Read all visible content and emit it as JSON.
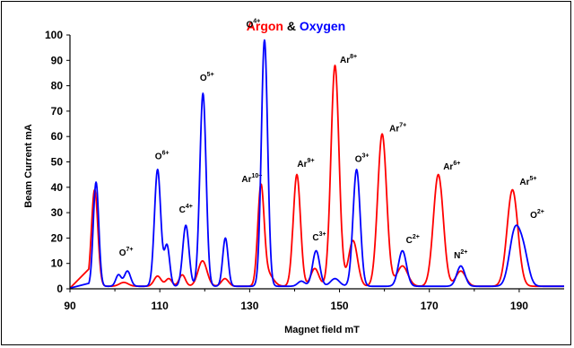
{
  "chart_data": {
    "type": "line",
    "title_parts": [
      {
        "text": "Argon",
        "color": "#ff0000"
      },
      {
        "text": " & ",
        "color": "#000000"
      },
      {
        "text": "Oxygen",
        "color": "#0000ff"
      }
    ],
    "xlabel": "Magnet field mT",
    "ylabel": "Beam Current mA",
    "xlim": [
      90,
      200
    ],
    "ylim": [
      0,
      100
    ],
    "xticks": [
      90,
      110,
      130,
      150,
      170,
      190
    ],
    "yticks": [
      0,
      10,
      20,
      30,
      40,
      50,
      60,
      70,
      80,
      90,
      100
    ],
    "grid": false,
    "series": [
      {
        "color": "#ff0000",
        "baseline": 1,
        "peaks": [
          [
            95.5,
            38,
            0.7
          ],
          [
            102,
            1.5,
            1.0
          ],
          [
            109.5,
            4,
            0.8
          ],
          [
            112,
            3,
            0.7
          ],
          [
            115,
            4.5,
            0.7
          ],
          [
            119.5,
            10,
            1.0
          ],
          [
            124.5,
            3,
            0.8
          ],
          [
            132.5,
            38,
            0.7
          ],
          [
            134,
            5,
            1.2
          ],
          [
            140.5,
            44,
            0.8
          ],
          [
            144.5,
            7,
            0.9
          ],
          [
            149,
            87,
            0.9
          ],
          [
            153,
            18,
            1.0
          ],
          [
            159.5,
            60,
            1.0
          ],
          [
            164,
            8,
            1.2
          ],
          [
            172,
            44,
            1.1
          ],
          [
            177,
            6,
            1.1
          ],
          [
            188.5,
            38,
            1.2
          ]
        ]
      },
      {
        "color": "#0000ff",
        "baseline": 1,
        "peaks": [
          [
            95.8,
            41,
            0.6
          ],
          [
            100.8,
            4.5,
            0.6
          ],
          [
            102.8,
            6,
            0.7
          ],
          [
            109.5,
            46,
            0.7
          ],
          [
            111.6,
            16,
            0.6
          ],
          [
            115.8,
            24,
            0.7
          ],
          [
            119.6,
            76,
            0.7
          ],
          [
            124.6,
            19,
            0.6
          ],
          [
            133.3,
            97,
            0.7
          ],
          [
            141.5,
            2,
            0.8
          ],
          [
            144.8,
            14,
            0.8
          ],
          [
            149,
            3,
            1.0
          ],
          [
            153.8,
            46,
            0.8
          ],
          [
            164,
            14,
            0.9
          ],
          [
            177,
            8,
            0.9
          ],
          [
            189,
            21,
            1.2
          ],
          [
            191,
            12,
            1.1
          ]
        ]
      }
    ],
    "annotations": [
      {
        "base": "O",
        "sup": "7+",
        "x": 102.5,
        "y": 13
      },
      {
        "base": "O",
        "sup": "6+",
        "x": 110.5,
        "y": 51
      },
      {
        "base": "C",
        "sup": "4+",
        "x": 115.8,
        "y": 30
      },
      {
        "base": "O",
        "sup": "5+",
        "x": 120.5,
        "y": 82
      },
      {
        "base": "O",
        "sup": "4+",
        "x": 130.8,
        "y": 103
      },
      {
        "base": "Ar",
        "sup": "10+",
        "x": 130.5,
        "y": 42
      },
      {
        "base": "Ar",
        "sup": "9+",
        "x": 142.5,
        "y": 48
      },
      {
        "base": "C",
        "sup": "3+",
        "x": 145.5,
        "y": 19
      },
      {
        "base": "Ar",
        "sup": "8+",
        "x": 152,
        "y": 89
      },
      {
        "base": "O",
        "sup": "3+",
        "x": 155,
        "y": 50
      },
      {
        "base": "Ar",
        "sup": "7+",
        "x": 163,
        "y": 62
      },
      {
        "base": "C",
        "sup": "2+",
        "x": 166.3,
        "y": 18
      },
      {
        "base": "Ar",
        "sup": "6+",
        "x": 175,
        "y": 47
      },
      {
        "base": "N",
        "sup": "2+",
        "x": 177,
        "y": 12
      },
      {
        "base": "Ar",
        "sup": "5+",
        "x": 192,
        "y": 41
      },
      {
        "base": "O",
        "sup": "2+",
        "x": 194,
        "y": 28
      }
    ]
  }
}
